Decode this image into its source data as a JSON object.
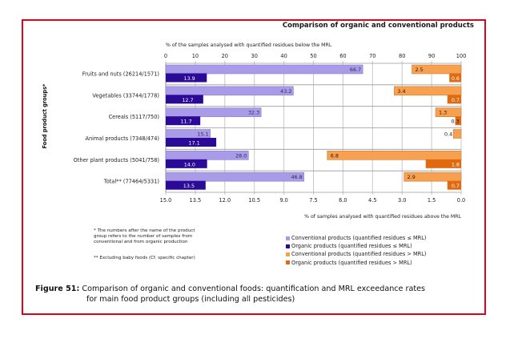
{
  "figure": {
    "caption_label": "Figure 51:",
    "caption_line1": "Comparison of organic and conventional foods: quantification and MRL exceedance rates",
    "caption_line2": "for main food product groups (including all pesticides)",
    "frame_color": "#d9061b"
  },
  "notes": {
    "note1_line1": "* The numbers after the name of the product",
    "note1_line2": "group refers to the number of samples  from",
    "note1_line3": "conventional and from organic production",
    "note2": "** Excluding baby foods (Cf. specific chapter)"
  },
  "chart_data": {
    "type": "bar",
    "orientation": "horizontal",
    "title": "Comparison of organic and conventional products",
    "ylabel": "Food product groups*",
    "top_axis": {
      "label": "% of the samples analysed with quantified residues below the MRL",
      "range": [
        0,
        100
      ],
      "ticks": [
        "0",
        "10",
        "20",
        "30",
        "40",
        "50",
        "60",
        "70",
        "80",
        "90",
        "100"
      ]
    },
    "bottom_axis": {
      "label": "% of samples analysed with quantified residues above the MRL",
      "range": [
        15.0,
        0.0
      ],
      "reversed": true,
      "ticks": [
        "15.0",
        "13.5",
        "12.0",
        "10.5",
        "9.0",
        "7.5",
        "6.0",
        "4.5",
        "3.0",
        "1.5",
        "0.0"
      ]
    },
    "grid": true,
    "categories": [
      "Fruits and nuts (26214/1571)",
      "Vegetables (33744/1778)",
      "Cereals (5117/750)",
      "Animal products (7348/474)",
      "Other plant products (5041/758)",
      "Total** (77464/5331)"
    ],
    "series": [
      {
        "name": "Conventional products  (quantified residues ≤ MRL)",
        "axis": "top",
        "color": "#a99be8",
        "label_color": "#2b2b55",
        "values": [
          66.7,
          43.2,
          32.3,
          15.1,
          28.0,
          46.8
        ],
        "labels": [
          "66.7",
          "43.2",
          "32.3",
          "15.1",
          "28.0",
          "46.8"
        ]
      },
      {
        "name": "Organic products (quantified residues ≤ MRL)",
        "axis": "top",
        "color": "#2a0a96",
        "label_color": "#ffffff",
        "values": [
          13.9,
          12.7,
          11.7,
          17.1,
          14.0,
          13.5
        ],
        "labels": [
          "13.9",
          "12.7",
          "11.7",
          "17.1",
          "14.0",
          "13.5"
        ]
      },
      {
        "name": "Conventional products (quantified residues > MRL)",
        "axis": "bottom",
        "color": "#f7a050",
        "label_color": "#2a1a00",
        "values": [
          2.5,
          3.4,
          1.3,
          0.4,
          6.8,
          2.9
        ],
        "labels": [
          "2.5",
          "3.4",
          "1.3",
          "0.4",
          "6.8",
          "2.9"
        ]
      },
      {
        "name": "Organic products (quantified residues > MRL)",
        "axis": "bottom",
        "color": "#e06a10",
        "label_color": "#ffffff",
        "values": [
          0.6,
          0.7,
          0.3,
          0.0,
          1.8,
          0.7
        ],
        "labels": [
          "0.6",
          "0.7",
          "0.3",
          "",
          "1.8",
          "0.7"
        ]
      }
    ],
    "legend_position": "bottom-right"
  }
}
